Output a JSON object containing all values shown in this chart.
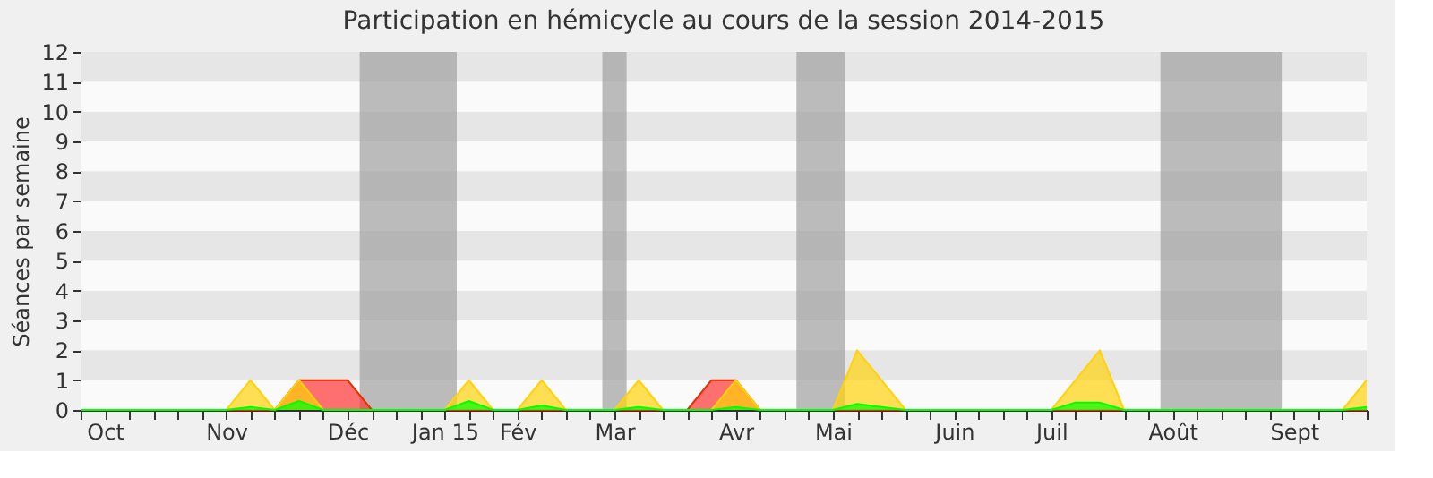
{
  "chart_data": {
    "type": "area",
    "title": "Participation en hémicycle au cours de la session 2014-2015",
    "ylabel": "Séances par semaine",
    "categories": [
      null,
      "Oct",
      null,
      null,
      null,
      null,
      "Nov",
      null,
      null,
      null,
      null,
      "Déc",
      null,
      null,
      null,
      "Jan 15",
      null,
      null,
      "Fév",
      null,
      null,
      null,
      "Mar",
      null,
      null,
      null,
      null,
      "Avr",
      null,
      null,
      null,
      "Mai",
      null,
      null,
      null,
      null,
      "Juin",
      null,
      null,
      null,
      "Juil",
      null,
      null,
      null,
      null,
      "Août",
      null,
      null,
      null,
      null,
      "Sept",
      null,
      null,
      null
    ],
    "series": [
      {
        "color": "#ff3333",
        "values": [
          0,
          0,
          0,
          0,
          0,
          0,
          0,
          0,
          0,
          1,
          1,
          1,
          0,
          0,
          0,
          0,
          0,
          0,
          0,
          0,
          0,
          0,
          0,
          0,
          0,
          0,
          1,
          1,
          0,
          0,
          0,
          0,
          0,
          0,
          0,
          0,
          0,
          0,
          0,
          0,
          0,
          0,
          0,
          0,
          0,
          0,
          0,
          0,
          0,
          0,
          0,
          0,
          0,
          0
        ]
      },
      {
        "color": "#ffd20a",
        "values": [
          0,
          0,
          0,
          0,
          0,
          0,
          0,
          1,
          0,
          1,
          0,
          0,
          0,
          0,
          0,
          0,
          1,
          0,
          0,
          1,
          0,
          0,
          0,
          1,
          0,
          0,
          0,
          1,
          0,
          0,
          0,
          0,
          2,
          1,
          0,
          0,
          0,
          0,
          0,
          0,
          0,
          1,
          2,
          0,
          0,
          0,
          0,
          0,
          0,
          0,
          0,
          0,
          0,
          1
        ]
      },
      {
        "color": "#00ff00",
        "values": [
          0,
          0,
          0,
          0,
          0,
          0,
          0,
          0.1,
          0,
          0.3,
          0,
          0,
          0,
          0,
          0,
          0,
          0.3,
          0,
          0,
          0.15,
          0,
          0,
          0,
          0.1,
          0,
          0,
          0,
          0.1,
          0,
          0,
          0,
          0,
          0.2,
          0.1,
          0,
          0,
          0,
          0,
          0,
          0,
          0,
          0.25,
          0.25,
          0,
          0,
          0,
          0,
          0,
          0,
          0,
          0,
          0,
          0,
          0.1
        ]
      }
    ],
    "ylim": [
      0,
      12
    ],
    "yticks": [
      0,
      1,
      2,
      3,
      4,
      5,
      6,
      7,
      8,
      9,
      10,
      11,
      12
    ]
  }
}
